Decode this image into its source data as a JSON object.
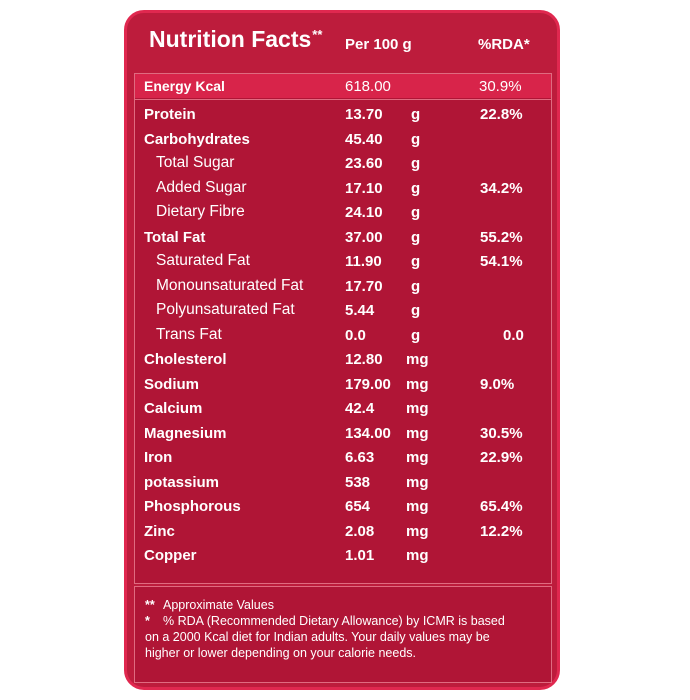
{
  "header": {
    "title": "Nutrition Facts",
    "title_mark": "**",
    "per": "Per 100 g",
    "rda": "%RDA*"
  },
  "energy": {
    "label": "Energy Kcal",
    "value": "618.00",
    "rda": "30.9%"
  },
  "rows": [
    {
      "label": "Protein",
      "value": "13.70",
      "unit": "g",
      "rda": "22.8%"
    },
    {
      "label": "Carbohydrates",
      "value": "45.40",
      "unit": "g",
      "rda": ""
    },
    {
      "label": "Total Sugar",
      "value": "23.60",
      "unit": "g",
      "rda": ""
    },
    {
      "label": "Added Sugar",
      "value": "17.10",
      "unit": "g",
      "rda": "34.2%"
    },
    {
      "label": "Dietary Fibre",
      "value": "24.10",
      "unit": "g",
      "rda": ""
    },
    {
      "label": "Total Fat",
      "value": "37.00",
      "unit": "g",
      "rda": "55.2%"
    },
    {
      "label": "Saturated Fat",
      "value": "11.90",
      "unit": "g",
      "rda": "54.1%"
    },
    {
      "label": "Monounsaturated Fat",
      "value": "17.70",
      "unit": "g",
      "rda": ""
    },
    {
      "label": "Polyunsaturated Fat",
      "value": "5.44",
      "unit": "g",
      "rda": ""
    },
    {
      "label": "Trans Fat",
      "value": "0.0",
      "unit": "g",
      "rda": "0.0"
    },
    {
      "label": "Cholesterol",
      "value": "12.80",
      "unit": "mg",
      "rda": ""
    },
    {
      "label": "Sodium",
      "value": "179.00",
      "unit": "mg",
      "rda": "9.0%"
    },
    {
      "label": "Calcium",
      "value": "42.4",
      "unit": "mg",
      "rda": ""
    },
    {
      "label": "Magnesium",
      "value": "134.00",
      "unit": "mg",
      "rda": "30.5%"
    },
    {
      "label": "Iron",
      "value": "6.63",
      "unit": "mg",
      "rda": "22.9%"
    },
    {
      "label": "potassium",
      "value": "538",
      "unit": "mg",
      "rda": ""
    },
    {
      "label": "Phosphorous",
      "value": "654",
      "unit": "mg",
      "rda": "65.4%"
    },
    {
      "label": "Zinc",
      "value": "2.08",
      "unit": "mg",
      "rda": "12.2%"
    },
    {
      "label": "Copper",
      "value": "1.01",
      "unit": "mg",
      "rda": ""
    }
  ],
  "footnotes": {
    "mark1": "**",
    "note1": "Approximate Values",
    "mark2": "*",
    "note2_line1": "% RDA (Recommended Dietary Allowance) by ICMR is based",
    "note2_line2": "on a 2000 Kcal diet for Indian adults. Your daily values may be",
    "note2_line3": "higher or lower depending on your calorie needs."
  }
}
